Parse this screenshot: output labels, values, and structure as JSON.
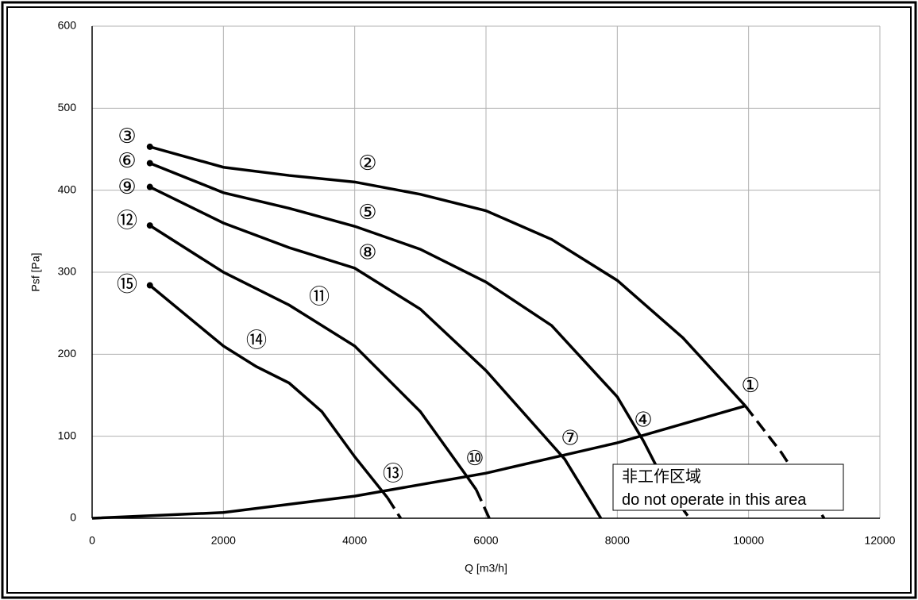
{
  "chart_data": {
    "type": "line",
    "x_label": "Q [m3/h]",
    "y_label": "Psf  [Pa]",
    "xlim": [
      0,
      12000
    ],
    "xticks": [
      0,
      2000,
      4000,
      6000,
      8000,
      10000,
      12000
    ],
    "ylim": [
      0,
      600
    ],
    "yticks": [
      0,
      100,
      200,
      300,
      400,
      500,
      600
    ],
    "grid": true,
    "series": [
      {
        "style": "solid",
        "color": "#000000",
        "start_dot": true,
        "x": [
          880,
          2000,
          3000,
          4000,
          5000,
          6000,
          7000,
          8000,
          9000,
          9950
        ],
        "values": [
          453,
          428,
          418,
          410,
          395,
          375,
          340,
          290,
          220,
          137
        ]
      },
      {
        "style": "dashed",
        "color": "#000000",
        "start_dot": false,
        "x": [
          9950,
          10500,
          11150
        ],
        "values": [
          137,
          80,
          0
        ]
      },
      {
        "style": "solid",
        "color": "#000000",
        "start_dot": true,
        "x": [
          880,
          2000,
          3000,
          4000,
          5000,
          6000,
          7000,
          8000,
          8400,
          8650
        ],
        "values": [
          433,
          397,
          378,
          356,
          328,
          288,
          235,
          148,
          94,
          55
        ]
      },
      {
        "style": "dashed",
        "color": "#000000",
        "start_dot": false,
        "x": [
          8650,
          8900,
          9100
        ],
        "values": [
          55,
          22,
          0
        ]
      },
      {
        "style": "solid",
        "color": "#000000",
        "start_dot": true,
        "x": [
          880,
          2000,
          3000,
          4000,
          5000,
          6000,
          7000,
          7200,
          7750
        ],
        "values": [
          404,
          360,
          330,
          305,
          255,
          180,
          90,
          72,
          0
        ]
      },
      {
        "style": "solid",
        "color": "#000000",
        "start_dot": true,
        "x": [
          880,
          2000,
          3000,
          4000,
          5000,
          5700,
          5850
        ],
        "values": [
          357,
          300,
          260,
          210,
          130,
          52,
          35
        ]
      },
      {
        "style": "dashed",
        "color": "#000000",
        "start_dot": false,
        "x": [
          5850,
          6050
        ],
        "values": [
          35,
          0
        ]
      },
      {
        "style": "solid",
        "color": "#000000",
        "start_dot": true,
        "x": [
          880,
          2000,
          2500,
          3000,
          3500,
          4000,
          4500
        ],
        "values": [
          284,
          210,
          185,
          165,
          130,
          75,
          25
        ]
      },
      {
        "style": "dashed",
        "color": "#000000",
        "start_dot": false,
        "x": [
          4500,
          4700
        ],
        "values": [
          25,
          0
        ]
      },
      {
        "style": "solid",
        "color": "#000000",
        "start_dot": false,
        "x": [
          0,
          2000,
          4000,
          6000,
          8000,
          9950
        ],
        "values": [
          0,
          7,
          27,
          55,
          92,
          137
        ]
      }
    ],
    "annotations": [
      {
        "text": "③",
        "x": 532,
        "y": 465
      },
      {
        "text": "⑥",
        "x": 532,
        "y": 435
      },
      {
        "text": "⑨",
        "x": 532,
        "y": 403
      },
      {
        "text": "⑫",
        "x": 532,
        "y": 362
      },
      {
        "text": "⑮",
        "x": 532,
        "y": 284
      },
      {
        "text": "②",
        "x": 4197,
        "y": 432
      },
      {
        "text": "⑤",
        "x": 4197,
        "y": 372
      },
      {
        "text": "⑧",
        "x": 4197,
        "y": 323
      },
      {
        "text": "⑪",
        "x": 3460,
        "y": 269
      },
      {
        "text": "⑭",
        "x": 2504,
        "y": 216
      },
      {
        "text": "①",
        "x": 10028,
        "y": 161
      },
      {
        "text": "④",
        "x": 8395,
        "y": 119
      },
      {
        "text": "⑦",
        "x": 7282,
        "y": 97
      },
      {
        "text": "⑩",
        "x": 5830,
        "y": 72
      },
      {
        "text": "⑬",
        "x": 4585,
        "y": 53
      }
    ],
    "note": [
      "非工作区域",
      "do not operate in this area"
    ]
  }
}
